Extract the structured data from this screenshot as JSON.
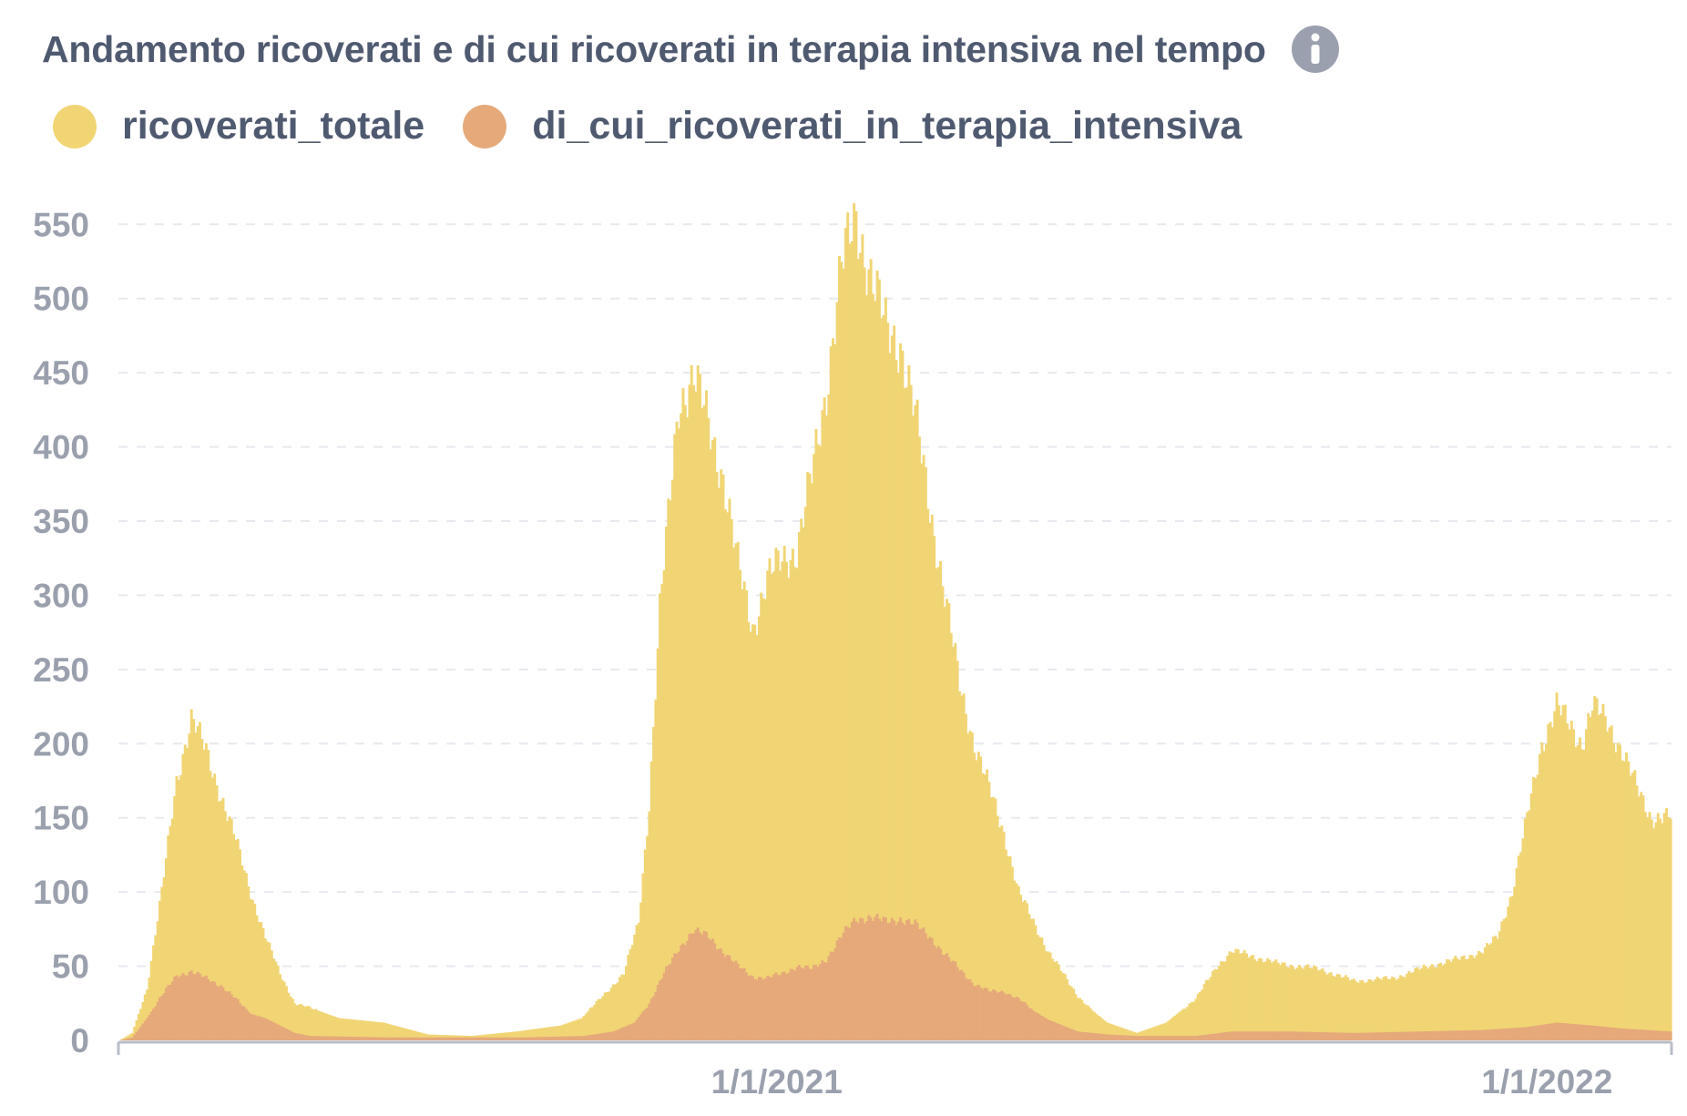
{
  "header": {
    "title": "Andamento ricoverati e di cui ricoverati in terapia intensiva nel tempo",
    "info_icon": "info-circle-icon"
  },
  "colors": {
    "ricoverati_totale": "#f1d574",
    "terapia_intensiva": "#e5a97a",
    "grid": "#e8e9ee",
    "axis": "#b9bdc8",
    "tick_text": "#9aa0ae",
    "title_text": "#4f5a70"
  },
  "chart_data": {
    "type": "bar",
    "title": "Andamento ricoverati e di cui ricoverati in terapia intensiva nel tempo",
    "legend_position": "top-left",
    "grid": true,
    "x_axis": {
      "type": "date",
      "range": [
        "2020-02-24",
        "2022-03-01"
      ],
      "tick_labels": [
        {
          "date": "2021-01-01",
          "label": "1/1/2021"
        },
        {
          "date": "2022-01-01",
          "label": "1/1/2022"
        }
      ]
    },
    "ylim": [
      0,
      560
    ],
    "y_ticks": [
      0,
      50,
      100,
      150,
      200,
      250,
      300,
      350,
      400,
      450,
      500,
      550
    ],
    "series": [
      {
        "name": "ricoverati_totale",
        "color": "#f1d574",
        "points": [
          [
            "2020-02-24",
            0
          ],
          [
            "2020-03-01",
            5
          ],
          [
            "2020-03-08",
            35
          ],
          [
            "2020-03-15",
            100
          ],
          [
            "2020-03-22",
            175
          ],
          [
            "2020-03-29",
            217
          ],
          [
            "2020-04-05",
            195
          ],
          [
            "2020-04-12",
            165
          ],
          [
            "2020-04-19",
            135
          ],
          [
            "2020-04-26",
            100
          ],
          [
            "2020-05-03",
            70
          ],
          [
            "2020-05-10",
            45
          ],
          [
            "2020-05-17",
            25
          ],
          [
            "2020-05-24",
            22
          ],
          [
            "2020-06-07",
            15
          ],
          [
            "2020-06-28",
            12
          ],
          [
            "2020-07-19",
            4
          ],
          [
            "2020-08-09",
            3
          ],
          [
            "2020-08-30",
            6
          ],
          [
            "2020-09-20",
            10
          ],
          [
            "2020-09-30",
            15
          ],
          [
            "2020-10-10",
            30
          ],
          [
            "2020-10-20",
            45
          ],
          [
            "2020-10-27",
            80
          ],
          [
            "2020-11-01",
            160
          ],
          [
            "2020-11-06",
            290
          ],
          [
            "2020-11-10",
            350
          ],
          [
            "2020-11-15",
            430
          ],
          [
            "2020-11-22",
            448
          ],
          [
            "2020-11-29",
            415
          ],
          [
            "2020-12-06",
            380
          ],
          [
            "2020-12-13",
            320
          ],
          [
            "2020-12-20",
            278
          ],
          [
            "2020-12-27",
            310
          ],
          [
            "2021-01-03",
            325
          ],
          [
            "2021-01-10",
            330
          ],
          [
            "2021-01-17",
            380
          ],
          [
            "2021-01-24",
            440
          ],
          [
            "2021-01-31",
            520
          ],
          [
            "2021-02-07",
            555
          ],
          [
            "2021-02-14",
            515
          ],
          [
            "2021-02-21",
            480
          ],
          [
            "2021-02-28",
            470
          ],
          [
            "2021-03-07",
            420
          ],
          [
            "2021-03-14",
            360
          ],
          [
            "2021-03-21",
            300
          ],
          [
            "2021-03-28",
            240
          ],
          [
            "2021-04-04",
            200
          ],
          [
            "2021-04-11",
            170
          ],
          [
            "2021-04-18",
            140
          ],
          [
            "2021-04-25",
            100
          ],
          [
            "2021-05-02",
            80
          ],
          [
            "2021-05-09",
            60
          ],
          [
            "2021-05-16",
            45
          ],
          [
            "2021-05-23",
            30
          ],
          [
            "2021-05-30",
            20
          ],
          [
            "2021-06-06",
            12
          ],
          [
            "2021-06-20",
            5
          ],
          [
            "2021-07-04",
            12
          ],
          [
            "2021-07-18",
            28
          ],
          [
            "2021-07-28",
            50
          ],
          [
            "2021-08-04",
            60
          ],
          [
            "2021-08-11",
            58
          ],
          [
            "2021-08-25",
            52
          ],
          [
            "2021-09-15",
            48
          ],
          [
            "2021-10-01",
            40
          ],
          [
            "2021-10-20",
            42
          ],
          [
            "2021-11-05",
            50
          ],
          [
            "2021-11-20",
            55
          ],
          [
            "2021-12-01",
            60
          ],
          [
            "2021-12-08",
            70
          ],
          [
            "2021-12-15",
            100
          ],
          [
            "2021-12-22",
            150
          ],
          [
            "2021-12-29",
            200
          ],
          [
            "2022-01-05",
            225
          ],
          [
            "2022-01-10",
            215
          ],
          [
            "2022-01-17",
            200
          ],
          [
            "2022-01-22",
            225
          ],
          [
            "2022-01-29",
            215
          ],
          [
            "2022-02-05",
            195
          ],
          [
            "2022-02-12",
            170
          ],
          [
            "2022-02-19",
            150
          ],
          [
            "2022-02-28",
            150
          ]
        ]
      },
      {
        "name": "di_cui_ricoverati_in_terapia_intensiva",
        "color": "#e5a97a",
        "points": [
          [
            "2020-02-24",
            0
          ],
          [
            "2020-03-01",
            2
          ],
          [
            "2020-03-08",
            15
          ],
          [
            "2020-03-15",
            30
          ],
          [
            "2020-03-22",
            44
          ],
          [
            "2020-03-29",
            46
          ],
          [
            "2020-04-05",
            42
          ],
          [
            "2020-04-12",
            37
          ],
          [
            "2020-04-19",
            28
          ],
          [
            "2020-04-26",
            18
          ],
          [
            "2020-05-03",
            15
          ],
          [
            "2020-05-10",
            10
          ],
          [
            "2020-05-17",
            5
          ],
          [
            "2020-05-24",
            3
          ],
          [
            "2020-07-01",
            2
          ],
          [
            "2020-09-01",
            2
          ],
          [
            "2020-10-01",
            3
          ],
          [
            "2020-10-15",
            6
          ],
          [
            "2020-10-25",
            12
          ],
          [
            "2020-11-01",
            25
          ],
          [
            "2020-11-08",
            45
          ],
          [
            "2020-11-15",
            62
          ],
          [
            "2020-11-22",
            74
          ],
          [
            "2020-11-29",
            70
          ],
          [
            "2020-12-06",
            60
          ],
          [
            "2020-12-13",
            50
          ],
          [
            "2020-12-20",
            43
          ],
          [
            "2020-12-27",
            42
          ],
          [
            "2021-01-03",
            45
          ],
          [
            "2021-01-10",
            50
          ],
          [
            "2021-01-17",
            48
          ],
          [
            "2021-01-24",
            55
          ],
          [
            "2021-01-31",
            70
          ],
          [
            "2021-02-07",
            82
          ],
          [
            "2021-02-14",
            83
          ],
          [
            "2021-02-21",
            80
          ],
          [
            "2021-02-28",
            82
          ],
          [
            "2021-03-07",
            78
          ],
          [
            "2021-03-14",
            70
          ],
          [
            "2021-03-21",
            58
          ],
          [
            "2021-03-28",
            48
          ],
          [
            "2021-04-04",
            38
          ],
          [
            "2021-04-11",
            33
          ],
          [
            "2021-04-18",
            33
          ],
          [
            "2021-04-25",
            28
          ],
          [
            "2021-05-02",
            20
          ],
          [
            "2021-05-09",
            14
          ],
          [
            "2021-05-16",
            10
          ],
          [
            "2021-05-23",
            6
          ],
          [
            "2021-06-06",
            4
          ],
          [
            "2021-06-20",
            3
          ],
          [
            "2021-07-18",
            3
          ],
          [
            "2021-08-04",
            6
          ],
          [
            "2021-09-01",
            6
          ],
          [
            "2021-10-01",
            5
          ],
          [
            "2021-11-01",
            6
          ],
          [
            "2021-12-01",
            7
          ],
          [
            "2021-12-22",
            9
          ],
          [
            "2022-01-05",
            12
          ],
          [
            "2022-01-22",
            10
          ],
          [
            "2022-02-05",
            8
          ],
          [
            "2022-02-28",
            6
          ]
        ]
      }
    ]
  }
}
